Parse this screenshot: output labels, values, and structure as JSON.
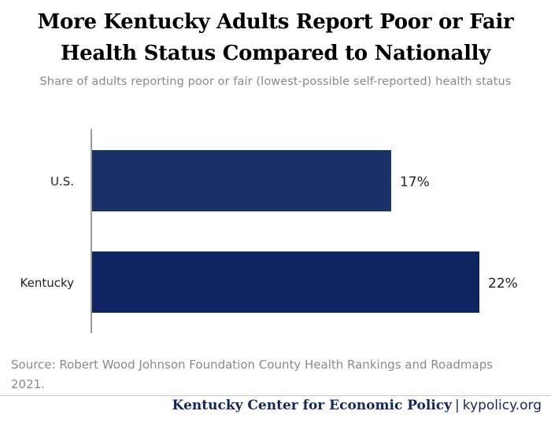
{
  "header": {
    "title_line1": "More Kentucky Adults Report Poor or Fair",
    "title_line2": "Health Status Compared to Nationally",
    "subtitle": "Share of adults reporting poor or fair (lowest-possible self-reported) health status"
  },
  "chart_data": {
    "type": "bar",
    "orientation": "horizontal",
    "categories": [
      "U.S.",
      "Kentucky"
    ],
    "values": [
      17,
      22
    ],
    "data_labels": [
      "17%",
      "22%"
    ],
    "bar_colors": [
      "#1a3069",
      "#0e2463"
    ],
    "xlim": [
      0,
      22
    ],
    "grid": false,
    "legend": "none"
  },
  "source": "Source: Robert Wood Johnson Foundation County Health Rankings and Roadmaps 2021.",
  "footer": {
    "org": "Kentucky Center for Economic Policy",
    "separator": "|",
    "site": "kypolicy.org"
  }
}
